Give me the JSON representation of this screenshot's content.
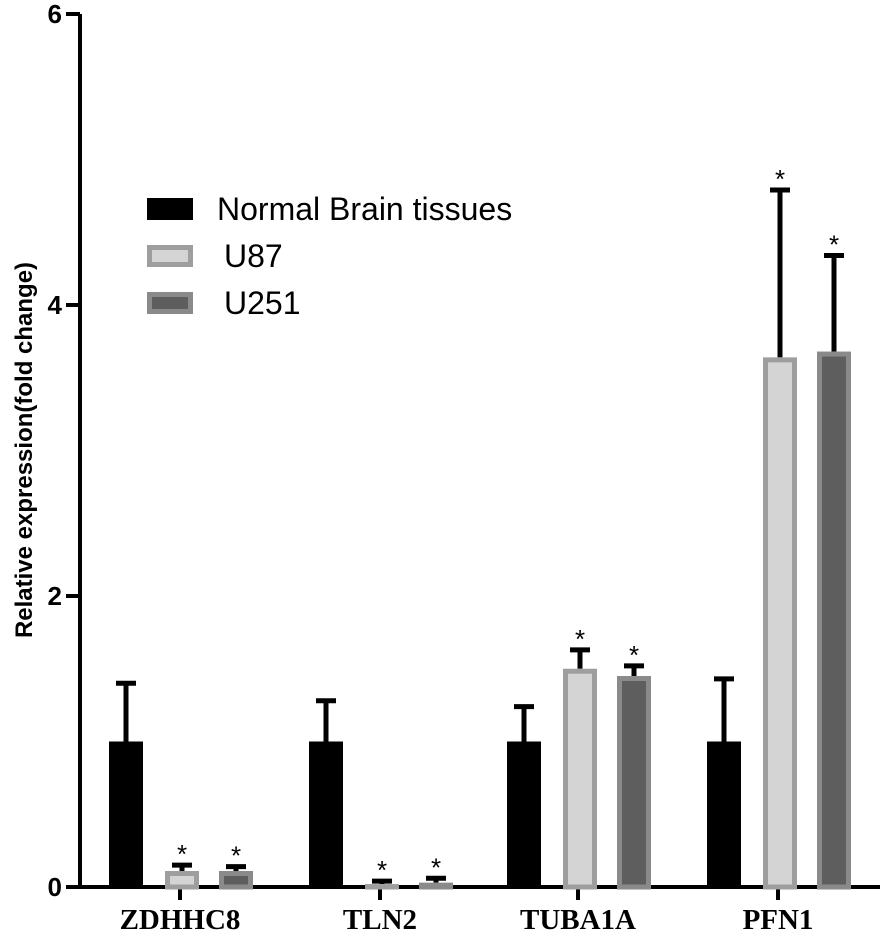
{
  "chart_data": {
    "type": "bar",
    "title": "",
    "xlabel": "",
    "ylabel": "Relative  expression(fold change)",
    "ylim": [
      0,
      6
    ],
    "yticks": [
      0,
      2,
      4,
      6
    ],
    "grid": false,
    "legend_position": "top-left",
    "categories": [
      "ZDHHC8",
      "TLN2",
      "TUBA1A",
      "PFN1"
    ],
    "significance_marker": "*",
    "series": [
      {
        "name": "Normal Brain tissues",
        "fill": "#000000",
        "stroke": "#000000",
        "values": [
          1.0,
          1.0,
          1.0,
          1.0
        ],
        "errors": [
          0.4,
          0.28,
          0.24,
          0.43
        ],
        "significant": [
          false,
          false,
          false,
          false
        ]
      },
      {
        "name": "U87",
        "fill": "#d4d4d4",
        "stroke": "#9e9e9e",
        "values": [
          0.11,
          0.02,
          1.5,
          3.64
        ],
        "errors": [
          0.04,
          0.02,
          0.13,
          1.15
        ],
        "significant": [
          true,
          true,
          true,
          true
        ]
      },
      {
        "name": "U251",
        "fill": "#5e5e5e",
        "stroke": "#8a8a8a",
        "values": [
          0.11,
          0.03,
          1.45,
          3.68
        ],
        "errors": [
          0.03,
          0.03,
          0.07,
          0.66
        ],
        "significant": [
          true,
          true,
          true,
          true
        ]
      }
    ]
  }
}
